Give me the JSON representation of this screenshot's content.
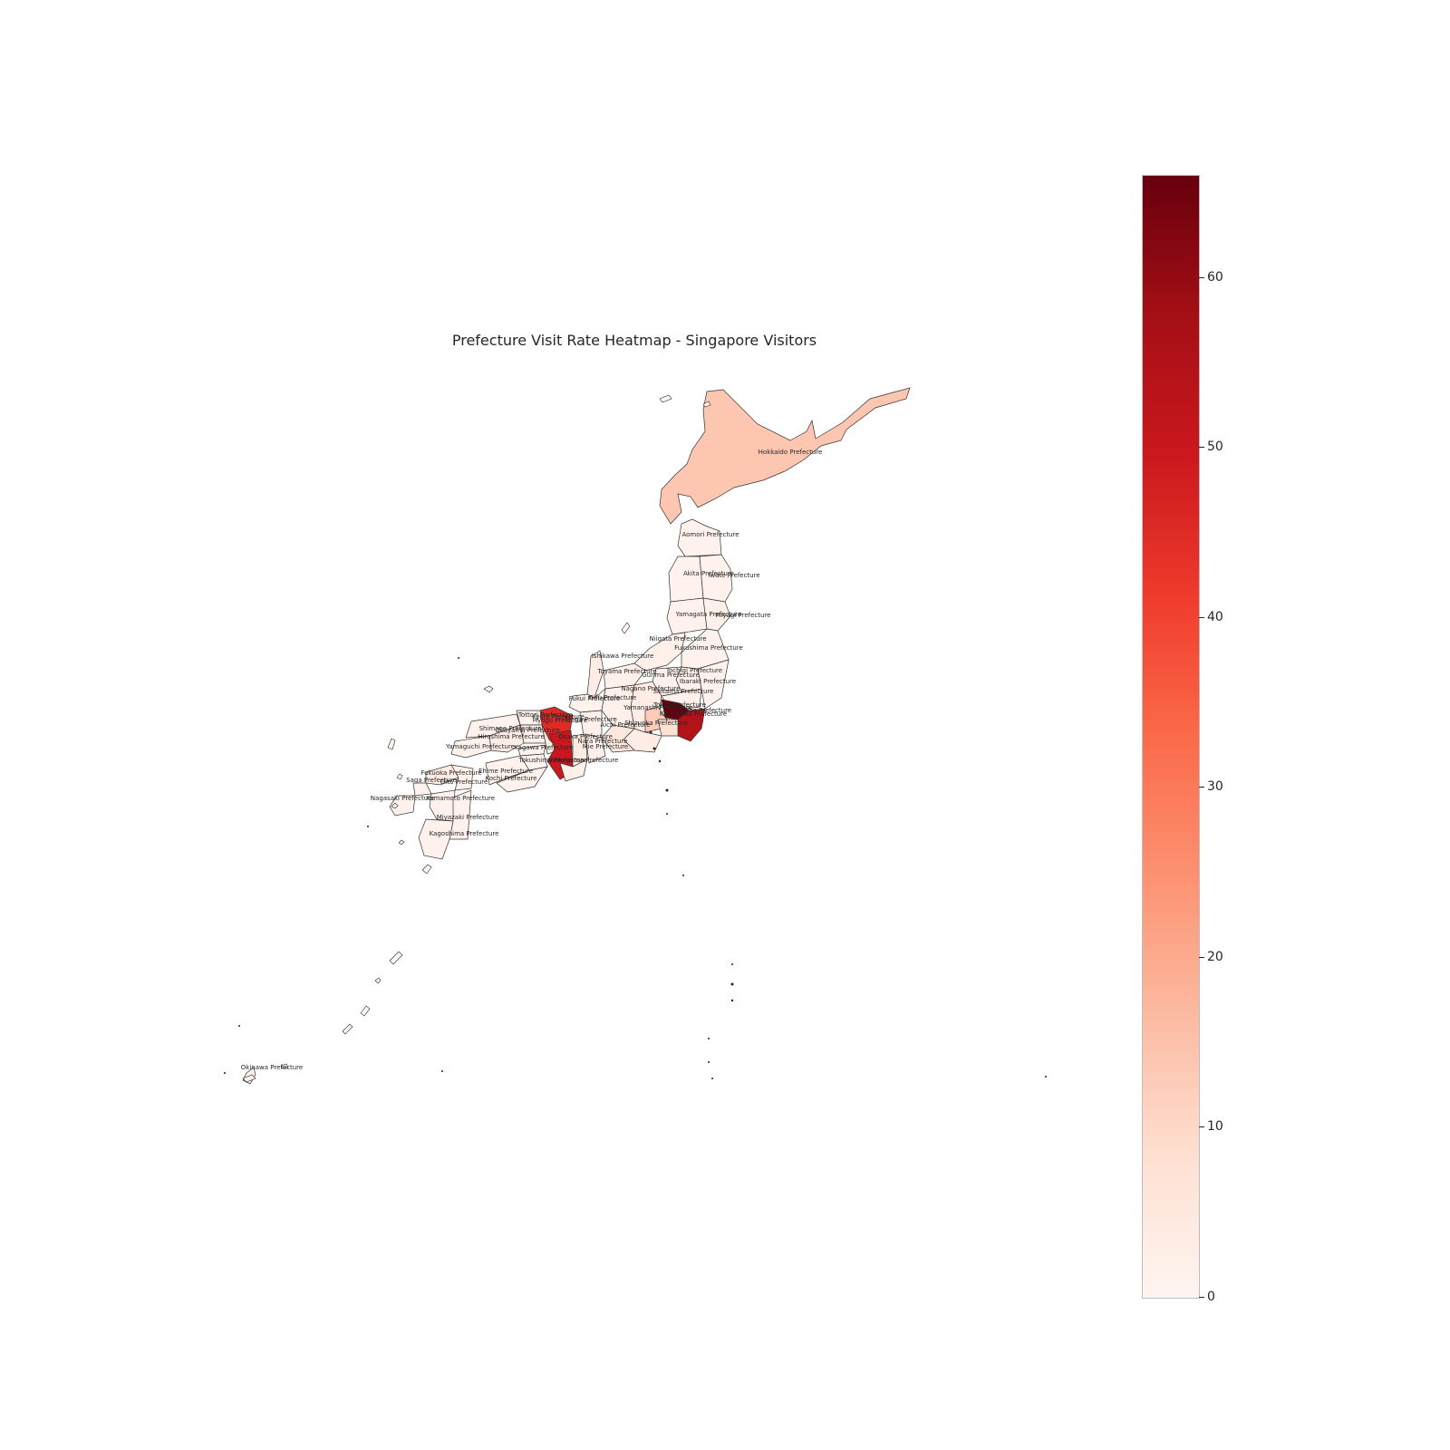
{
  "title": "Prefecture Visit Rate Heatmap - Singapore Visitors",
  "colorbar": {
    "min": 0,
    "max": 66,
    "ticks": [
      "0",
      "10",
      "20",
      "30",
      "40",
      "50",
      "60"
    ],
    "colormap": "Reds",
    "colors": [
      "#fff5f0",
      "#fee0d2",
      "#fcbba1",
      "#fc9272",
      "#fb6a4a",
      "#ef3b2c",
      "#cb181d",
      "#a50f15",
      "#67000d"
    ]
  },
  "chart_data": {
    "type": "heatmap",
    "title": "Prefecture Visit Rate Heatmap - Singapore Visitors",
    "value_range": [
      0,
      66
    ],
    "legend_position": "right",
    "regions": [
      {
        "name": "Hokkaido Prefecture",
        "value": 14
      },
      {
        "name": "Aomori Prefecture",
        "value": 1
      },
      {
        "name": "Akita Prefecture",
        "value": 1
      },
      {
        "name": "Iwate Prefecture",
        "value": 1
      },
      {
        "name": "Yamagata Prefecture",
        "value": 1
      },
      {
        "name": "Miyagi Prefecture",
        "value": 2
      },
      {
        "name": "Niigata Prefecture",
        "value": 2
      },
      {
        "name": "Fukushima Prefecture",
        "value": 1
      },
      {
        "name": "Ishikawa Prefecture",
        "value": 3
      },
      {
        "name": "Tochigi Prefecture",
        "value": 2
      },
      {
        "name": "Gunma Prefecture",
        "value": 1
      },
      {
        "name": "Toyama Prefecture",
        "value": 2
      },
      {
        "name": "Ibaraki Prefecture",
        "value": 1
      },
      {
        "name": "Nagano Prefecture",
        "value": 3
      },
      {
        "name": "Saitama Prefecture",
        "value": 2
      },
      {
        "name": "Fukui Prefecture",
        "value": 1
      },
      {
        "name": "Gifu Prefecture",
        "value": 2
      },
      {
        "name": "Yamanashi Prefecture",
        "value": 13
      },
      {
        "name": "Tokyo Prefecture",
        "value": 66
      },
      {
        "name": "Chiba Prefecture",
        "value": 55
      },
      {
        "name": "Kanagawa Prefecture",
        "value": 8
      },
      {
        "name": "Shizuoka Prefecture",
        "value": 3
      },
      {
        "name": "Aichi Prefecture",
        "value": 5
      },
      {
        "name": "Shiga Prefecture",
        "value": 2
      },
      {
        "name": "Kyoto Prefecture",
        "value": 45
      },
      {
        "name": "Tottori Prefecture",
        "value": 1
      },
      {
        "name": "Shimane Prefecture",
        "value": 1
      },
      {
        "name": "Okayama Prefecture",
        "value": 1
      },
      {
        "name": "Hyogo Prefecture",
        "value": 3
      },
      {
        "name": "Osaka Prefecture",
        "value": 50
      },
      {
        "name": "Nara Prefecture",
        "value": 4
      },
      {
        "name": "Mie Prefecture",
        "value": 2
      },
      {
        "name": "Hiroshima Prefecture",
        "value": 3
      },
      {
        "name": "Yamaguchi Prefecture",
        "value": 1
      },
      {
        "name": "Kagawa Prefecture",
        "value": 1
      },
      {
        "name": "Tokushima Prefecture",
        "value": 1
      },
      {
        "name": "Wakayama Prefecture",
        "value": 2
      },
      {
        "name": "Ehime Prefecture",
        "value": 1
      },
      {
        "name": "Kochi Prefecture",
        "value": 1
      },
      {
        "name": "Fukuoka Prefecture",
        "value": 3
      },
      {
        "name": "Saga Prefecture",
        "value": 1
      },
      {
        "name": "Oita Prefecture",
        "value": 1
      },
      {
        "name": "Nagasaki Prefecture",
        "value": 1
      },
      {
        "name": "Kumamoto Prefecture",
        "value": 1
      },
      {
        "name": "Miyazaki Prefecture",
        "value": 1
      },
      {
        "name": "Kagoshima Prefecture",
        "value": 1
      },
      {
        "name": "Okinawa Prefecture",
        "value": 2
      }
    ]
  }
}
